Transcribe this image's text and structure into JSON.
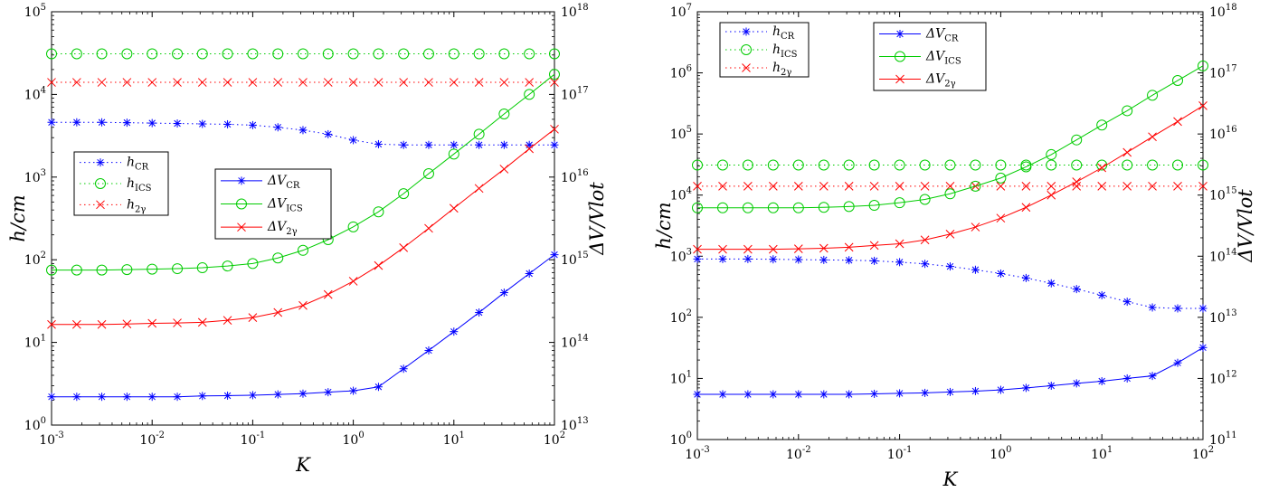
{
  "chart_data": [
    {
      "type": "line",
      "xscale": "log",
      "xlim": [
        0.001,
        100
      ],
      "xticks": [
        {
          "base": "10",
          "exp": "-3"
        },
        {
          "base": "10",
          "exp": "-2"
        },
        {
          "base": "10",
          "exp": "-1"
        },
        {
          "base": "10",
          "exp": "0"
        },
        {
          "base": "10",
          "exp": "1"
        },
        {
          "base": "10",
          "exp": "2"
        }
      ],
      "xlabel": "K",
      "ylabel_left": "h/cm",
      "ylabel_right": "ΔV/Vlot",
      "ylim_left": [
        1,
        100000
      ],
      "ylim_right": [
        10000000000000.0,
        1e+18
      ],
      "yticks_left": [
        {
          "base": "10",
          "exp": "0"
        },
        {
          "base": "10",
          "exp": "1"
        },
        {
          "base": "10",
          "exp": "2"
        },
        {
          "base": "10",
          "exp": "3"
        },
        {
          "base": "10",
          "exp": "4"
        },
        {
          "base": "10",
          "exp": "5"
        }
      ],
      "yticks_right": [
        {
          "base": "10",
          "exp": "13"
        },
        {
          "base": "10",
          "exp": "14"
        },
        {
          "base": "10",
          "exp": "15"
        },
        {
          "base": "10",
          "exp": "16"
        },
        {
          "base": "10",
          "exp": "17"
        },
        {
          "base": "10",
          "exp": "18"
        }
      ],
      "x": [
        0.001,
        0.00178,
        0.00316,
        0.00562,
        0.01,
        0.0178,
        0.0316,
        0.0562,
        0.1,
        0.178,
        0.316,
        0.562,
        1,
        1.78,
        3.16,
        5.62,
        10,
        17.8,
        31.6,
        56.2,
        100
      ],
      "series": [
        {
          "name": "h_CR",
          "axis": "left",
          "color": "#0000ff",
          "marker": "star",
          "linestyle": "dotted",
          "values": [
            4600,
            4600,
            4600,
            4550,
            4500,
            4450,
            4400,
            4350,
            4250,
            4000,
            3700,
            3300,
            2800,
            2500,
            2450,
            2450,
            2450,
            2450,
            2450,
            2450,
            2450
          ]
        },
        {
          "name": "h_ICS",
          "axis": "left",
          "color": "#00cc00",
          "marker": "circle",
          "linestyle": "dotted",
          "values": [
            31000,
            31000,
            31000,
            31000,
            31000,
            31000,
            31000,
            31000,
            31000,
            31000,
            31000,
            31000,
            31000,
            31000,
            31000,
            31000,
            31000,
            31000,
            31000,
            31000,
            31000
          ]
        },
        {
          "name": "h_2γ",
          "axis": "left",
          "color": "#ff0000",
          "marker": "x",
          "linestyle": "dotted",
          "values": [
            14000,
            14000,
            14000,
            14000,
            14000,
            14000,
            14000,
            14000,
            14000,
            14000,
            14000,
            14000,
            14000,
            14000,
            14000,
            14000,
            14000,
            14000,
            14000,
            14000,
            14000
          ]
        },
        {
          "name": "ΔV_CR",
          "axis": "right",
          "color": "#0000ff",
          "marker": "star",
          "linestyle": "solid",
          "values": [
            22000000000000.0,
            22000000000000.0,
            22000000000000.0,
            22000000000000.0,
            22000000000000.0,
            22000000000000.0,
            22500000000000.0,
            22700000000000.0,
            23000000000000.0,
            23500000000000.0,
            24000000000000.0,
            25000000000000.0,
            26000000000000.0,
            29000000000000.0,
            48000000000000.0,
            80000000000000.0,
            135000000000000.0,
            230000000000000.0,
            400000000000000.0,
            680000000000000.0,
            1150000000000000.0
          ]
        },
        {
          "name": "ΔV_ICS",
          "axis": "right",
          "color": "#00cc00",
          "marker": "circle",
          "linestyle": "solid",
          "values": [
            750000000000000.0,
            750000000000000.0,
            750000000000000.0,
            760000000000000.0,
            770000000000000.0,
            780000000000000.0,
            800000000000000.0,
            840000000000000.0,
            900000000000000.0,
            1050000000000000.0,
            1300000000000000.0,
            1750000000000000.0,
            2500000000000000.0,
            3800000000000000.0,
            6300000000000000.0,
            1.1e+16,
            1.9e+16,
            3.3e+16,
            5.8e+16,
            1e+17,
            1.75e+17
          ]
        },
        {
          "name": "ΔV_2γ",
          "axis": "right",
          "color": "#ff0000",
          "marker": "x",
          "linestyle": "solid",
          "values": [
            165000000000000.0,
            165000000000000.0,
            165000000000000.0,
            167000000000000.0,
            170000000000000.0,
            172000000000000.0,
            175000000000000.0,
            185000000000000.0,
            200000000000000.0,
            230000000000000.0,
            280000000000000.0,
            380000000000000.0,
            550000000000000.0,
            850000000000000.0,
            1400000000000000.0,
            2400000000000000.0,
            4200000000000000.0,
            7300000000000000.0,
            1.25e+16,
            2.2e+16,
            3.8e+16
          ]
        }
      ],
      "legend_h": [
        "h_CR",
        "h_ICS",
        "h_2γ"
      ],
      "legend_v": [
        "ΔV_CR",
        "ΔV_ICS",
        "ΔV_2γ"
      ],
      "legend_h_position": "middle-left",
      "legend_v_position": "middle-center"
    },
    {
      "type": "line",
      "xscale": "log",
      "xlim": [
        0.001,
        100
      ],
      "xticks": [
        {
          "base": "10",
          "exp": "-3"
        },
        {
          "base": "10",
          "exp": "-2"
        },
        {
          "base": "10",
          "exp": "-1"
        },
        {
          "base": "10",
          "exp": "0"
        },
        {
          "base": "10",
          "exp": "1"
        },
        {
          "base": "10",
          "exp": "2"
        }
      ],
      "xlabel": "K",
      "ylabel_left": "h/cm",
      "ylabel_right": "ΔV/Vlot",
      "ylim_left": [
        1,
        10000000
      ],
      "ylim_right": [
        100000000000.0,
        1e+18
      ],
      "yticks_left": [
        {
          "base": "10",
          "exp": "0"
        },
        {
          "base": "10",
          "exp": "1"
        },
        {
          "base": "10",
          "exp": "2"
        },
        {
          "base": "10",
          "exp": "3"
        },
        {
          "base": "10",
          "exp": "4"
        },
        {
          "base": "10",
          "exp": "5"
        },
        {
          "base": "10",
          "exp": "6"
        },
        {
          "base": "10",
          "exp": "7"
        }
      ],
      "yticks_right": [
        {
          "base": "10",
          "exp": "11"
        },
        {
          "base": "10",
          "exp": "12"
        },
        {
          "base": "10",
          "exp": "13"
        },
        {
          "base": "10",
          "exp": "14"
        },
        {
          "base": "10",
          "exp": "15"
        },
        {
          "base": "10",
          "exp": "16"
        },
        {
          "base": "10",
          "exp": "17"
        },
        {
          "base": "10",
          "exp": "18"
        }
      ],
      "x": [
        0.001,
        0.00178,
        0.00316,
        0.00562,
        0.01,
        0.0178,
        0.0316,
        0.0562,
        0.1,
        0.178,
        0.316,
        0.562,
        1,
        1.78,
        3.16,
        5.62,
        10,
        17.8,
        31.6,
        56.2,
        100
      ],
      "series": [
        {
          "name": "h_CR",
          "axis": "left",
          "color": "#0000ff",
          "marker": "star",
          "linestyle": "dotted",
          "values": [
            900,
            900,
            900,
            890,
            880,
            870,
            860,
            840,
            800,
            750,
            680,
            600,
            520,
            440,
            360,
            290,
            230,
            180,
            145,
            140,
            140
          ]
        },
        {
          "name": "h_ICS",
          "axis": "left",
          "color": "#00cc00",
          "marker": "circle",
          "linestyle": "dotted",
          "values": [
            31000,
            31000,
            31000,
            31000,
            31000,
            31000,
            31000,
            31000,
            31000,
            31000,
            31000,
            31000,
            31000,
            31000,
            31000,
            31000,
            31000,
            31000,
            31000,
            31000,
            31000
          ]
        },
        {
          "name": "h_2γ",
          "axis": "left",
          "color": "#ff0000",
          "marker": "x",
          "linestyle": "dotted",
          "values": [
            14000,
            14000,
            14000,
            14000,
            14000,
            14000,
            14000,
            14000,
            14000,
            14000,
            14000,
            14000,
            14000,
            14000,
            14000,
            14000,
            14000,
            14000,
            14000,
            14000,
            14000
          ]
        },
        {
          "name": "ΔV_CR",
          "axis": "right",
          "color": "#0000ff",
          "marker": "star",
          "linestyle": "solid",
          "values": [
            550000000000.0,
            550000000000.0,
            550000000000.0,
            550000000000.0,
            550000000000.0,
            550000000000.0,
            550000000000.0,
            560000000000.0,
            570000000000.0,
            580000000000.0,
            600000000000.0,
            620000000000.0,
            650000000000.0,
            700000000000.0,
            760000000000.0,
            830000000000.0,
            900000000000.0,
            1000000000000.0,
            1100000000000.0,
            1800000000000.0,
            3200000000000.0
          ]
        },
        {
          "name": "ΔV_ICS",
          "axis": "right",
          "color": "#00cc00",
          "marker": "circle",
          "linestyle": "solid",
          "values": [
            620000000000000.0,
            620000000000000.0,
            620000000000000.0,
            620000000000000.0,
            620000000000000.0,
            630000000000000.0,
            650000000000000.0,
            680000000000000.0,
            750000000000000.0,
            850000000000000.0,
            1050000000000000.0,
            1400000000000000.0,
            1900000000000000.0,
            2900000000000000.0,
            4600000000000000.0,
            8000000000000000.0,
            1.4e+16,
            2.4e+16,
            4.3e+16,
            7.5e+16,
            1.3e+17
          ]
        },
        {
          "name": "ΔV_2γ",
          "axis": "right",
          "color": "#ff0000",
          "marker": "x",
          "linestyle": "solid",
          "values": [
            130000000000000.0,
            130000000000000.0,
            130000000000000.0,
            130000000000000.0,
            132000000000000.0,
            135000000000000.0,
            140000000000000.0,
            150000000000000.0,
            160000000000000.0,
            185000000000000.0,
            230000000000000.0,
            300000000000000.0,
            420000000000000.0,
            630000000000000.0,
            1000000000000000.0,
            1650000000000000.0,
            2800000000000000.0,
            5000000000000000.0,
            9000000000000000.0,
            1.6e+16,
            2.9e+16
          ]
        }
      ],
      "legend_h": [
        "h_CR",
        "h_ICS",
        "h_2γ"
      ],
      "legend_v": [
        "ΔV_CR",
        "ΔV_ICS",
        "ΔV_2γ"
      ],
      "legend_h_position": "top-left",
      "legend_v_position": "top-center"
    }
  ]
}
